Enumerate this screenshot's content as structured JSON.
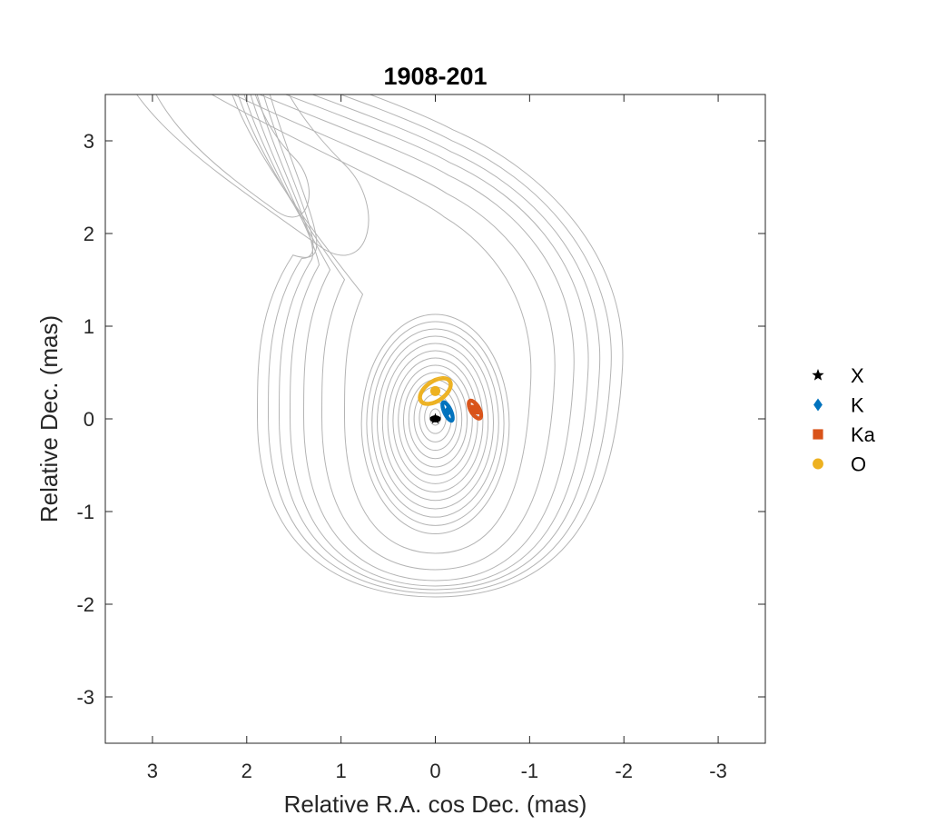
{
  "chart_data": {
    "type": "scatter",
    "title": "1908-201",
    "xlabel": "Relative R.A. cos Dec. (mas)",
    "ylabel": "Relative Dec. (mas)",
    "xlim": [
      3.5,
      -3.5
    ],
    "ylim": [
      -3.5,
      3.5
    ],
    "x_reversed": true,
    "xticks": [
      3,
      2,
      1,
      0,
      -1,
      -2,
      -3
    ],
    "yticks": [
      -3,
      -2,
      -1,
      0,
      1,
      2,
      3
    ],
    "xtick_labels": [
      "3",
      "2",
      "1",
      "0",
      "-1",
      "-2",
      "-3"
    ],
    "ytick_labels": [
      "-3",
      "-2",
      "-1",
      "0",
      "1",
      "2",
      "3"
    ],
    "grid": false,
    "legend_position": "outside-right",
    "background_contours": {
      "color": "#b4b4b4",
      "core": {
        "x": 0.0,
        "y": 0.02
      },
      "jet": {
        "x": 2.6,
        "y": 3.0
      }
    },
    "series": [
      {
        "name": "X",
        "marker": "star",
        "color": "#000000",
        "x": 0.0,
        "y": 0.0,
        "error_ellipse": {
          "a": 0.05,
          "b": 0.03,
          "angle_deg": 0
        }
      },
      {
        "name": "K",
        "marker": "diamond",
        "color": "#0072bd",
        "x": -0.13,
        "y": 0.08,
        "error_ellipse": {
          "a": 0.12,
          "b": 0.05,
          "angle_deg": 65
        }
      },
      {
        "name": "Ka",
        "marker": "square",
        "color": "#d95319",
        "x": -0.42,
        "y": 0.1,
        "error_ellipse": {
          "a": 0.12,
          "b": 0.06,
          "angle_deg": 60
        }
      },
      {
        "name": "O",
        "marker": "circle",
        "color": "#edb120",
        "x": 0.0,
        "y": 0.3,
        "error_ellipse": {
          "a": 0.2,
          "b": 0.12,
          "angle_deg": -35
        }
      }
    ]
  }
}
